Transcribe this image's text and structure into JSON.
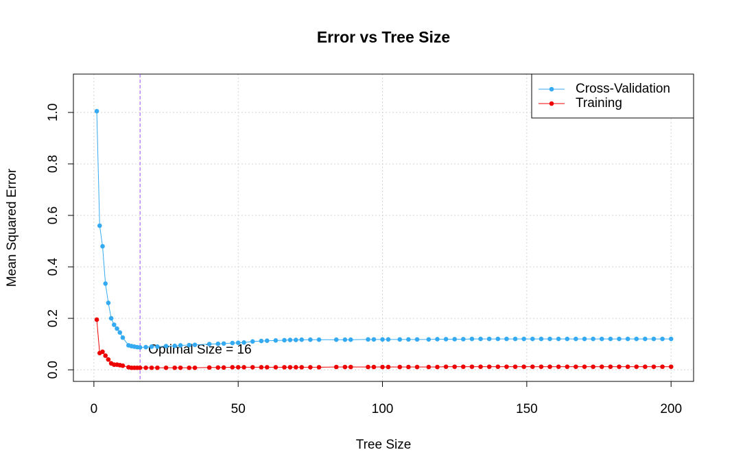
{
  "chart_data": {
    "type": "line",
    "title": "Error vs Tree Size",
    "x_label": "Tree Size",
    "y_label": "Mean Squared Error",
    "x": [
      1,
      2,
      3,
      4,
      5,
      6,
      7,
      8,
      9,
      10,
      12,
      13,
      14,
      15,
      16,
      18,
      20,
      22,
      25,
      28,
      30,
      33,
      35,
      40,
      43,
      45,
      48,
      50,
      52,
      55,
      58,
      60,
      63,
      66,
      68,
      70,
      72,
      75,
      78,
      84,
      87,
      89,
      95,
      97,
      100,
      102,
      106,
      109,
      112,
      116,
      119,
      122,
      125,
      128,
      131,
      134,
      137,
      140,
      143,
      146,
      149,
      152,
      155,
      158,
      161,
      164,
      167,
      170,
      173,
      176,
      179,
      182,
      185,
      188,
      191,
      194,
      197,
      200
    ],
    "series": [
      {
        "name": "Cross-Validation",
        "color": "#33aaf2",
        "values": [
          1.005,
          0.56,
          0.48,
          0.335,
          0.26,
          0.2,
          0.175,
          0.16,
          0.145,
          0.125,
          0.095,
          0.092,
          0.09,
          0.088,
          0.087,
          0.088,
          0.09,
          0.09,
          0.092,
          0.093,
          0.095,
          0.096,
          0.097,
          0.1,
          0.101,
          0.102,
          0.104,
          0.105,
          0.106,
          0.11,
          0.112,
          0.113,
          0.114,
          0.115,
          0.116,
          0.116,
          0.117,
          0.117,
          0.117,
          0.117,
          0.117,
          0.117,
          0.118,
          0.118,
          0.118,
          0.118,
          0.118,
          0.118,
          0.118,
          0.118,
          0.119,
          0.119,
          0.119,
          0.119,
          0.12,
          0.12,
          0.12,
          0.12,
          0.12,
          0.12,
          0.12,
          0.12,
          0.12,
          0.12,
          0.12,
          0.12,
          0.12,
          0.12,
          0.12,
          0.12,
          0.12,
          0.12,
          0.12,
          0.12,
          0.12,
          0.12,
          0.12,
          0.12
        ]
      },
      {
        "name": "Training",
        "color": "#ee0000",
        "values": [
          0.195,
          0.065,
          0.07,
          0.055,
          0.04,
          0.025,
          0.02,
          0.02,
          0.018,
          0.016,
          0.01,
          0.008,
          0.008,
          0.008,
          0.008,
          0.008,
          0.008,
          0.008,
          0.008,
          0.008,
          0.008,
          0.008,
          0.008,
          0.009,
          0.009,
          0.009,
          0.01,
          0.01,
          0.01,
          0.01,
          0.01,
          0.01,
          0.01,
          0.01,
          0.01,
          0.01,
          0.01,
          0.01,
          0.01,
          0.011,
          0.011,
          0.011,
          0.011,
          0.011,
          0.011,
          0.011,
          0.011,
          0.011,
          0.011,
          0.011,
          0.011,
          0.012,
          0.012,
          0.012,
          0.012,
          0.012,
          0.012,
          0.012,
          0.012,
          0.012,
          0.012,
          0.012,
          0.012,
          0.012,
          0.012,
          0.012,
          0.012,
          0.012,
          0.012,
          0.012,
          0.012,
          0.012,
          0.012,
          0.012,
          0.012,
          0.012,
          0.012,
          0.012
        ]
      }
    ],
    "xlim": [
      -7.1,
      207.8
    ],
    "ylim": [
      -0.045,
      1.149
    ],
    "xticks": [
      0,
      50,
      100,
      150,
      200
    ],
    "yticks": [
      {
        "value": 0,
        "label": "0.0"
      },
      {
        "value": 0.2,
        "label": "0.2"
      },
      {
        "value": 0.4,
        "label": "0.4"
      },
      {
        "value": 0.6,
        "label": "0.6"
      },
      {
        "value": 0.8,
        "label": "0.8"
      },
      {
        "value": 1,
        "label": "1.0"
      }
    ],
    "grid": true,
    "legend": "top-right",
    "vline": {
      "x": 16,
      "color": "#9b4dff"
    },
    "annotation": "Optimal Size = 16"
  }
}
